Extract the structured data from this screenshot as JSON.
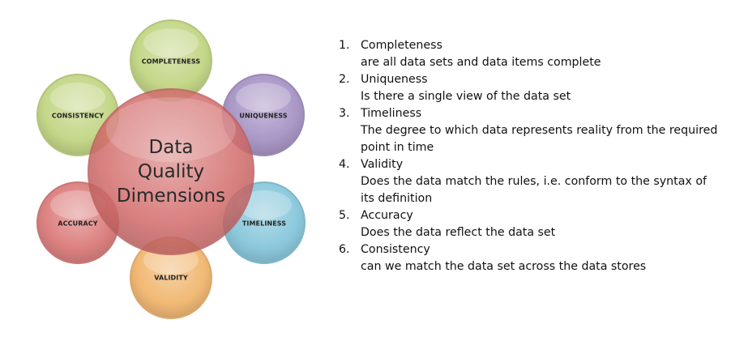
{
  "diagram": {
    "center": [
      "Data",
      "Quality",
      "Dimensions"
    ],
    "circles": [
      {
        "key": "completeness",
        "label": "COMPLETENESS",
        "color": "#bed37c"
      },
      {
        "key": "uniqueness",
        "label": "UNIQUENESS",
        "color": "#a08cc0"
      },
      {
        "key": "timeliness",
        "label": "TIMELINESS",
        "color": "#7fc3d9"
      },
      {
        "key": "validity",
        "label": "VALIDITY",
        "color": "#f0b266"
      },
      {
        "key": "accuracy",
        "label": "ACCURACY",
        "color": "#d97473"
      },
      {
        "key": "consistency",
        "label": "CONSISTENCY",
        "color": "#bed37c"
      }
    ],
    "center_color": "#d26b6a"
  },
  "list": [
    {
      "num": "1.",
      "title": "Completeness",
      "desc": "are all data sets and data items complete"
    },
    {
      "num": "2.",
      "title": "Uniqueness",
      "desc": "Is there a single view of the data set"
    },
    {
      "num": "3.",
      "title": "Timeliness",
      "desc": "The degree to which data represents reality from the required point in time"
    },
    {
      "num": "4.",
      "title": "Validity",
      "desc": "Does the data match the rules, i.e. conform to the syntax of its definition"
    },
    {
      "num": "5.",
      "title": "Accuracy",
      "desc": "Does the data reflect the data set"
    },
    {
      "num": "6.",
      "title": "Consistency",
      "desc": "can we match the data set across the data stores"
    }
  ]
}
